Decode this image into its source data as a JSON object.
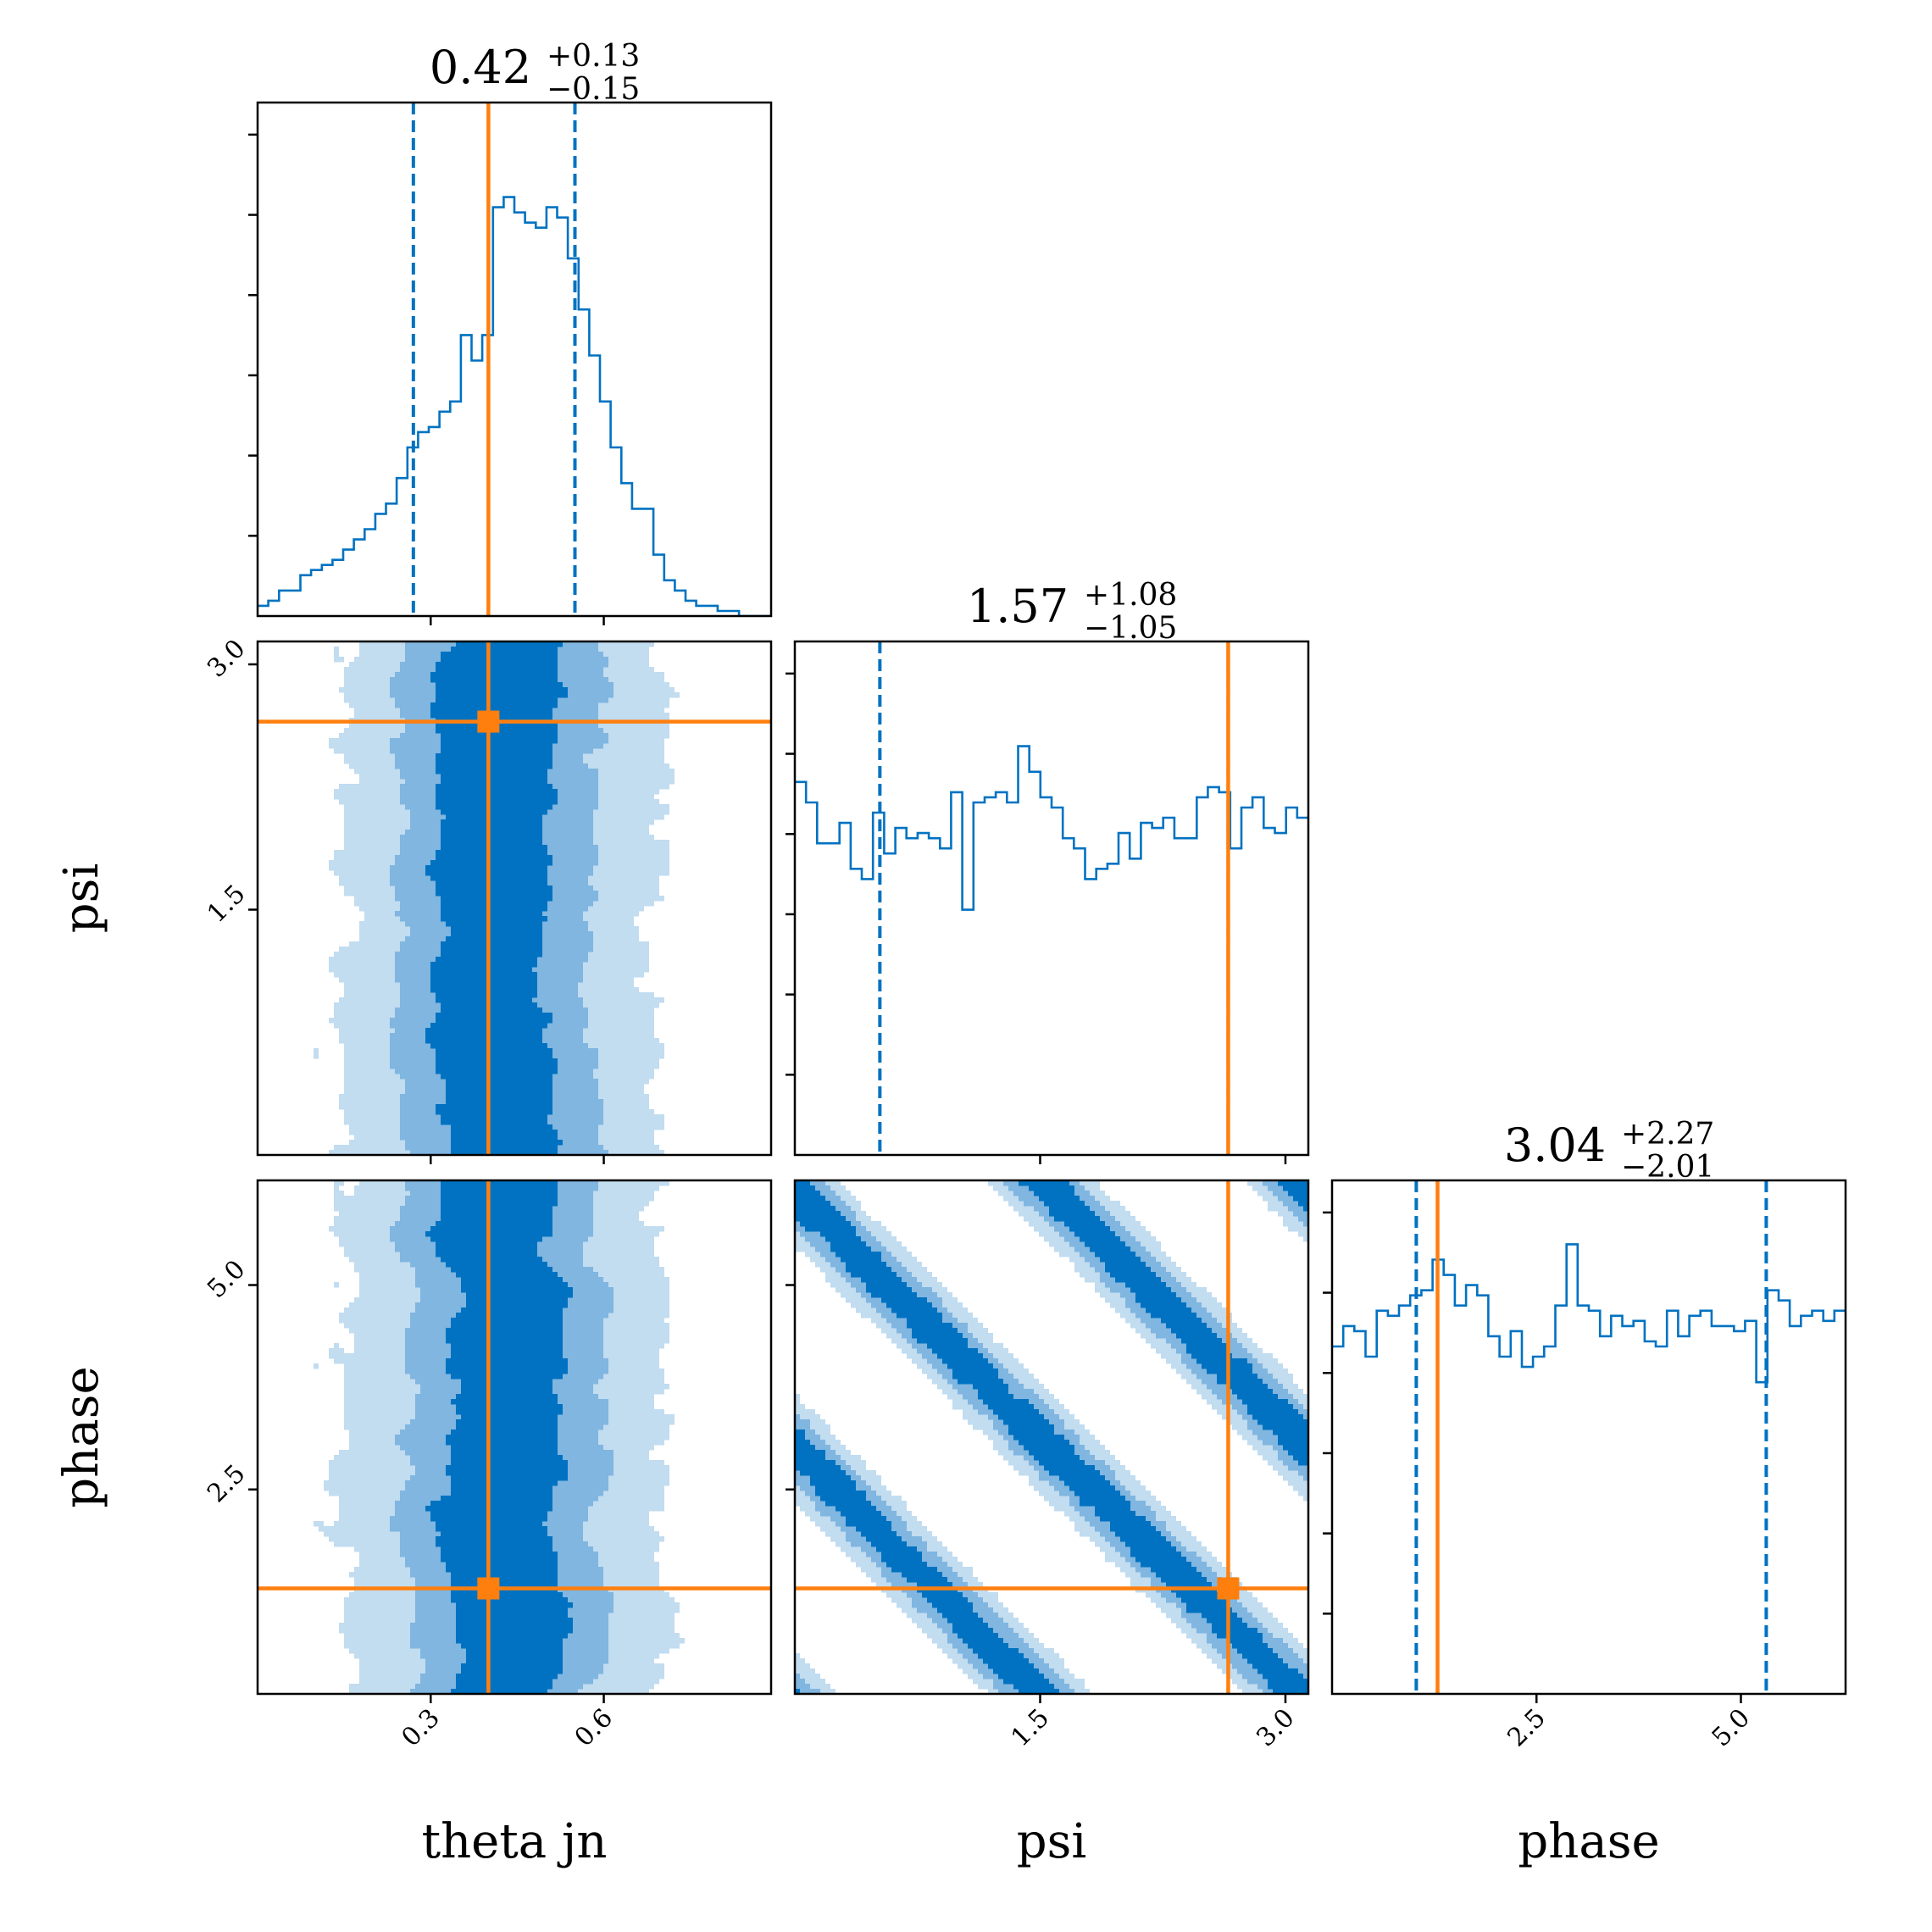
{
  "colors": {
    "hist": "#0072c1",
    "truth": "#ff7f0e",
    "level1": "#c2dcf0",
    "level2": "#80b6e0",
    "level3": "#0072c1"
  },
  "chart_data": {
    "type": "corner",
    "parameters": [
      {
        "key": "theta_jn",
        "label": "theta jn",
        "range": [
          0.0,
          0.89
        ],
        "ticks": [
          {
            "value": 0.3,
            "label": "0.3"
          },
          {
            "value": 0.6,
            "label": "0.6"
          }
        ],
        "title": {
          "median": "0.42",
          "plus": "+0.13",
          "minus": "−0.15"
        },
        "median": 0.42,
        "quantiles": [
          0.27,
          0.55
        ],
        "truth": 0.4,
        "hist_bins": [
          0.0,
          0.89
        ],
        "hist_counts": [
          0.02,
          0.03,
          0.05,
          0.05,
          0.08,
          0.09,
          0.1,
          0.11,
          0.13,
          0.15,
          0.17,
          0.2,
          0.22,
          0.27,
          0.33,
          0.36,
          0.37,
          0.4,
          0.42,
          0.55,
          0.5,
          0.55,
          0.8,
          0.82,
          0.79,
          0.77,
          0.76,
          0.8,
          0.78,
          0.7,
          0.6,
          0.51,
          0.42,
          0.33,
          0.26,
          0.21,
          0.21,
          0.12,
          0.07,
          0.05,
          0.03,
          0.02,
          0.02,
          0.01,
          0.01,
          0.0,
          0.0,
          0.0
        ]
      },
      {
        "key": "psi",
        "label": "psi",
        "range": [
          0.0,
          3.14
        ],
        "ticks": [
          {
            "value": 1.5,
            "label": "1.5"
          },
          {
            "value": 3.0,
            "label": "3.0"
          }
        ],
        "title": {
          "median": "1.57",
          "plus": "+1.08",
          "minus": "−1.05"
        },
        "median": 1.57,
        "quantiles": [
          0.52,
          2.65
        ],
        "truth": 2.65,
        "hist_counts": [
          0.73,
          0.69,
          0.61,
          0.61,
          0.65,
          0.56,
          0.54,
          0.67,
          0.59,
          0.64,
          0.62,
          0.63,
          0.62,
          0.6,
          0.71,
          0.48,
          0.69,
          0.7,
          0.71,
          0.69,
          0.8,
          0.75,
          0.7,
          0.68,
          0.62,
          0.6,
          0.54,
          0.56,
          0.57,
          0.63,
          0.58,
          0.65,
          0.64,
          0.66,
          0.62,
          0.62,
          0.7,
          0.72,
          0.71,
          0.6,
          0.68,
          0.7,
          0.64,
          0.63,
          0.68,
          0.66
        ]
      },
      {
        "key": "phase",
        "label": "phase",
        "range": [
          0.0,
          6.28
        ],
        "ticks": [
          {
            "value": 2.5,
            "label": "2.5"
          },
          {
            "value": 5.0,
            "label": "5.0"
          }
        ],
        "title": {
          "median": "3.04",
          "plus": "+2.27",
          "minus": "−2.01"
        },
        "median": 3.04,
        "quantiles": [
          1.03,
          5.31
        ],
        "truth": 1.29,
        "hist_counts": [
          0.68,
          0.72,
          0.71,
          0.66,
          0.75,
          0.74,
          0.76,
          0.78,
          0.79,
          0.85,
          0.82,
          0.76,
          0.8,
          0.78,
          0.7,
          0.66,
          0.71,
          0.64,
          0.66,
          0.68,
          0.76,
          0.88,
          0.76,
          0.75,
          0.7,
          0.74,
          0.72,
          0.73,
          0.69,
          0.68,
          0.75,
          0.7,
          0.74,
          0.75,
          0.72,
          0.72,
          0.71,
          0.73,
          0.61,
          0.79,
          0.77,
          0.72,
          0.74,
          0.75,
          0.73,
          0.75
        ]
      }
    ],
    "truth_point": {
      "theta_jn": 0.4,
      "psi": 2.65,
      "phase": 1.29
    },
    "correlations": [
      {
        "x": "theta_jn",
        "y": "psi",
        "shape": "vertical-band",
        "center": 0.42,
        "sigma": 0.13
      },
      {
        "x": "theta_jn",
        "y": "phase",
        "shape": "vertical-band",
        "center": 0.42,
        "sigma": 0.13
      },
      {
        "x": "psi",
        "y": "phase",
        "shape": "diagonal-bands",
        "slope": -2
      }
    ]
  }
}
